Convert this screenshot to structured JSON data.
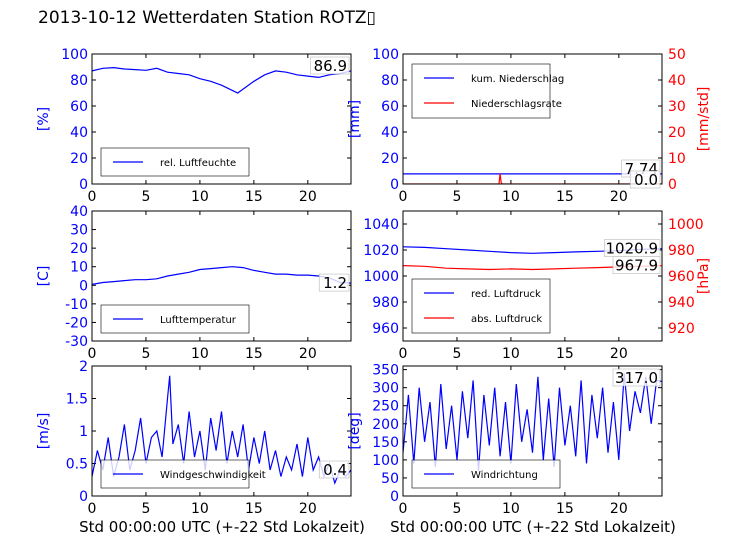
{
  "figure": {
    "title": "2013-10-12 Wetterdaten Station ROTZ▯",
    "xlabel": "Std 00:00:00 UTC (+-22 Std Lokalzeit)"
  },
  "colors": {
    "left_axis": "#0000ff",
    "right_axis": "#ff0000",
    "series_light": "#8080ff"
  },
  "chart_data": [
    {
      "id": "humidity",
      "type": "line",
      "ylabel": "[%]",
      "ylim": [
        0,
        100
      ],
      "yticks": [
        0,
        20,
        40,
        60,
        80,
        100
      ],
      "xlim": [
        0,
        24
      ],
      "xticks": [
        0,
        5,
        10,
        15,
        20
      ],
      "latest_value": "86.9",
      "legend_position": "lower-left",
      "series": [
        {
          "name": "rel. Luftfeuchte",
          "color": "#0000ff",
          "x": [
            0,
            1,
            2,
            3,
            4,
            5,
            6,
            7,
            8,
            9,
            10,
            11,
            12,
            13,
            13.5,
            14,
            15,
            16,
            17,
            18,
            19,
            20,
            21,
            22,
            23,
            24
          ],
          "y": [
            87,
            89,
            89.5,
            88.5,
            88,
            87.5,
            89,
            86,
            85,
            84,
            81,
            79,
            76,
            72,
            70,
            73,
            79,
            84,
            87,
            86,
            84,
            83,
            82,
            84,
            85,
            87
          ]
        }
      ]
    },
    {
      "id": "precip",
      "type": "line",
      "ylabel": "[mm]",
      "ylim": [
        0,
        100
      ],
      "yticks": [
        0,
        20,
        40,
        60,
        80,
        100
      ],
      "ylabel_right": "[mm/std]",
      "ylim_right": [
        0,
        50
      ],
      "yticks_right": [
        0,
        10,
        20,
        30,
        40,
        50
      ],
      "xlim": [
        0,
        24
      ],
      "xticks": [
        0,
        5,
        10,
        15,
        20
      ],
      "latest_values": [
        "7.74",
        "0.0"
      ],
      "legend_position": "top-left",
      "series": [
        {
          "name": "kum. Niederschlag",
          "color": "#0000ff",
          "axis": "left",
          "x": [
            0,
            24
          ],
          "y": [
            7.74,
            7.74
          ]
        },
        {
          "name": "Niederschlagsrate",
          "color": "#ff0000",
          "axis": "right",
          "x": [
            0,
            8.9,
            9.0,
            9.1,
            9.2,
            24
          ],
          "y": [
            0,
            0,
            4,
            0.5,
            0,
            0
          ]
        }
      ]
    },
    {
      "id": "temperature",
      "type": "line",
      "ylabel": "[C]",
      "ylim": [
        -30,
        40
      ],
      "yticks": [
        -30,
        -20,
        -10,
        0,
        10,
        20,
        30,
        40
      ],
      "xlim": [
        0,
        24
      ],
      "xticks": [
        0,
        5,
        10,
        15,
        20
      ],
      "latest_value": "1.2",
      "legend_position": "lower-left",
      "series": [
        {
          "name": "Lufttemperatur",
          "color": "#0000ff",
          "x": [
            0,
            1,
            2,
            3,
            4,
            5,
            6,
            7,
            8,
            9,
            10,
            11,
            12,
            13,
            14,
            15,
            16,
            17,
            18,
            19,
            20,
            21,
            22,
            23,
            24
          ],
          "y": [
            0.5,
            1.5,
            2,
            2.5,
            3,
            3,
            3.5,
            5,
            6,
            7,
            8.5,
            9,
            9.5,
            10,
            9.5,
            8,
            7,
            6,
            6,
            5.5,
            5.5,
            5,
            4,
            1.5,
            1.2
          ]
        }
      ]
    },
    {
      "id": "pressure",
      "type": "line",
      "ylabel": "",
      "ylim": [
        950,
        1050
      ],
      "yticks": [
        960,
        980,
        1000,
        1020,
        1040
      ],
      "ylabel_right": "[hPa]",
      "ylim_right": [
        910,
        1010
      ],
      "yticks_right": [
        920,
        940,
        960,
        980,
        1000
      ],
      "xlim": [
        0,
        24
      ],
      "xticks": [
        0,
        5,
        10,
        15,
        20
      ],
      "latest_values": [
        "1020.9",
        "967.9"
      ],
      "legend_position": "lower-left",
      "series": [
        {
          "name": "red. Luftdruck",
          "color": "#0000ff",
          "axis": "left",
          "x": [
            0,
            2,
            4,
            6,
            8,
            10,
            12,
            14,
            16,
            18,
            20,
            22,
            24
          ],
          "y": [
            1022.5,
            1022,
            1021,
            1020,
            1019,
            1018,
            1017.5,
            1018,
            1018.5,
            1019,
            1019.5,
            1020.5,
            1021
          ]
        },
        {
          "name": "abs. Luftdruck",
          "color": "#ff0000",
          "axis": "right",
          "x": [
            0,
            2,
            4,
            6,
            8,
            10,
            12,
            14,
            16,
            18,
            20,
            22,
            24
          ],
          "y": [
            968,
            967.5,
            966,
            965.5,
            965,
            965.5,
            965,
            965.5,
            966,
            966.5,
            967,
            967.5,
            967.9
          ]
        }
      ]
    },
    {
      "id": "wind_speed",
      "type": "line",
      "ylabel": "[m/s]",
      "ylim": [
        0,
        2.0
      ],
      "yticks": [
        0.0,
        0.5,
        1.0,
        1.5,
        2.0
      ],
      "xlim": [
        0,
        24
      ],
      "xticks": [
        0,
        5,
        10,
        15,
        20
      ],
      "latest_value": "0.4",
      "legend_position": "lower-left",
      "series": [
        {
          "name": "Windgeschwindigkeit",
          "color": "#0000ff",
          "x": [
            0,
            0.5,
            1,
            1.5,
            2,
            2.5,
            3,
            3.5,
            4,
            4.5,
            5,
            5.5,
            6,
            6.5,
            7,
            7.2,
            7.5,
            8,
            8.5,
            9,
            9.5,
            10,
            10.5,
            11,
            11.5,
            12,
            12.5,
            13,
            13.5,
            14,
            14.5,
            15,
            15.5,
            16,
            16.5,
            17,
            17.5,
            18,
            18.5,
            19,
            19.5,
            20,
            20.5,
            21,
            21.5,
            22,
            22.5,
            23,
            23.5,
            24
          ],
          "y": [
            0.3,
            0.7,
            0.4,
            0.9,
            0.3,
            0.6,
            1.1,
            0.4,
            0.7,
            1.2,
            0.5,
            0.9,
            1.0,
            0.6,
            1.5,
            1.85,
            0.8,
            1.1,
            0.5,
            1.3,
            0.6,
            1.0,
            0.4,
            1.2,
            0.7,
            1.3,
            0.5,
            1.0,
            0.6,
            1.1,
            0.4,
            0.9,
            0.5,
            1.0,
            0.4,
            0.7,
            0.3,
            0.6,
            0.4,
            0.8,
            0.3,
            0.9,
            0.4,
            0.6,
            0.3,
            0.5,
            0.2,
            0.4,
            0.3,
            0.4
          ]
        }
      ]
    },
    {
      "id": "wind_direction",
      "type": "line",
      "ylabel": "[deg]",
      "ylim": [
        0,
        360
      ],
      "yticks": [
        0,
        50,
        100,
        150,
        200,
        250,
        300,
        350
      ],
      "xlim": [
        0,
        24
      ],
      "xticks": [
        0,
        5,
        10,
        15,
        20
      ],
      "latest_value": "317.0",
      "legend_position": "lower-left",
      "series": [
        {
          "name": "Windrichtung",
          "color": "#0000ff",
          "x": [
            0,
            0.5,
            1,
            1.5,
            2,
            2.5,
            3,
            3.5,
            4,
            4.5,
            5,
            5.5,
            6,
            6.5,
            7,
            7.5,
            8,
            8.5,
            9,
            9.5,
            10,
            10.5,
            11,
            11.5,
            12,
            12.5,
            13,
            13.5,
            14,
            14.5,
            15,
            15.5,
            16,
            16.5,
            17,
            17.5,
            18,
            18.5,
            19,
            19.5,
            20,
            20.5,
            21,
            21.5,
            22,
            22.5,
            23,
            23.5,
            24
          ],
          "y": [
            120,
            280,
            90,
            300,
            150,
            260,
            80,
            310,
            130,
            250,
            100,
            290,
            160,
            320,
            70,
            280,
            140,
            300,
            110,
            260,
            90,
            310,
            150,
            240,
            120,
            330,
            100,
            270,
            80,
            300,
            140,
            250,
            110,
            320,
            90,
            280,
            160,
            300,
            120,
            260,
            100,
            340,
            180,
            290,
            230,
            330,
            200,
            320,
            317
          ]
        }
      ]
    }
  ]
}
